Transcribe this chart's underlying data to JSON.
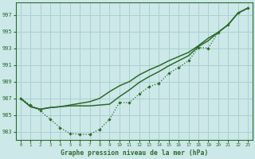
{
  "title": "Graphe pression niveau de la mer (hPa)",
  "bg_color": "#cce8e8",
  "grid_color": "#aad0d0",
  "line_color": "#2d6b2d",
  "xlim": [
    -0.5,
    23.5
  ],
  "ylim": [
    982.0,
    998.5
  ],
  "yticks": [
    983,
    985,
    987,
    989,
    991,
    993,
    995,
    997
  ],
  "xticks": [
    0,
    1,
    2,
    3,
    4,
    5,
    6,
    7,
    8,
    9,
    10,
    11,
    12,
    13,
    14,
    15,
    16,
    17,
    18,
    19,
    20,
    21,
    22,
    23
  ],
  "series1_dotted": [
    987.0,
    986.2,
    985.5,
    984.5,
    983.5,
    982.8,
    982.7,
    982.7,
    983.3,
    984.5,
    986.5,
    986.5,
    987.5,
    988.4,
    988.8,
    990.0,
    990.7,
    991.5,
    993.1,
    993.0,
    994.9,
    995.8,
    997.2,
    997.8
  ],
  "series2_solid": [
    987.0,
    986.0,
    985.7,
    985.9,
    986.0,
    986.1,
    986.1,
    986.1,
    986.2,
    986.3,
    987.2,
    988.0,
    988.9,
    989.6,
    990.2,
    990.9,
    991.5,
    992.1,
    993.2,
    993.9,
    994.9,
    995.8,
    997.2,
    997.8
  ],
  "series3_solid": [
    987.0,
    986.0,
    985.7,
    985.9,
    986.0,
    986.2,
    986.4,
    986.6,
    987.0,
    987.8,
    988.5,
    989.0,
    989.8,
    990.4,
    990.9,
    991.5,
    992.0,
    992.5,
    993.3,
    994.2,
    994.9,
    995.8,
    997.2,
    997.8
  ]
}
